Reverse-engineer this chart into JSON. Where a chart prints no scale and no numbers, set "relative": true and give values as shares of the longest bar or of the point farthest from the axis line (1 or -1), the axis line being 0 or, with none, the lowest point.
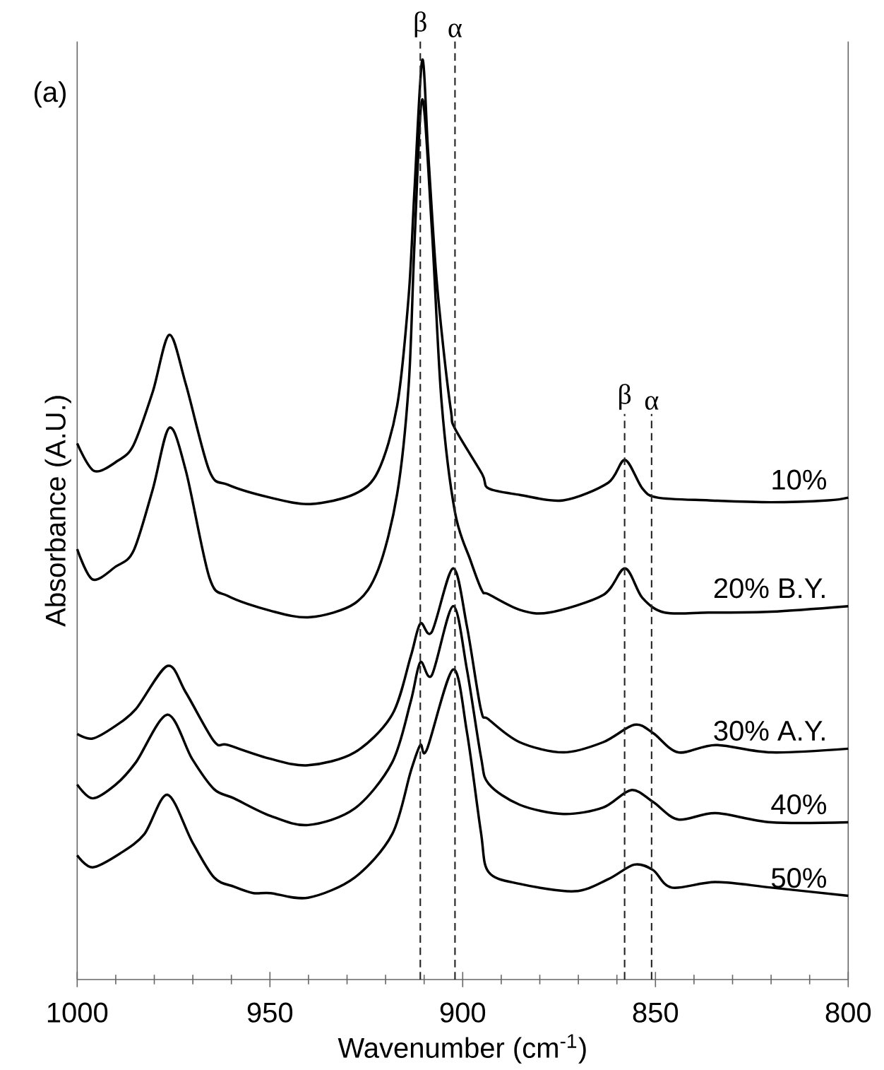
{
  "chart_data": {
    "type": "line",
    "relative": true,
    "xlabel": "Wavenumber (cm$^{-1}$)",
    "ylabel": "Absorbance (A.U.)",
    "xlim": [
      1000,
      800
    ],
    "xticks": [
      1000,
      950,
      900,
      850,
      800
    ],
    "annotations": [
      "(a)"
    ],
    "ref_lines": [
      {
        "axis": "x",
        "value": 911,
        "label": "β",
        "line_style": "dashed"
      },
      {
        "axis": "x",
        "value": 902,
        "label": "α",
        "line_style": "dashed"
      },
      {
        "axis": "x",
        "value": 858,
        "label": "β",
        "line_style": "dashed"
      },
      {
        "axis": "x",
        "value": 851,
        "label": "α",
        "line_style": "dashed"
      }
    ],
    "series": [
      {
        "name": "10%",
        "color": "#000000",
        "x": [
          1000,
          995.6,
          989.5,
          985.4,
          980.4,
          976.1,
          971.8,
          965.7,
          960.9,
          949.9,
          939.6,
          928,
          921.9,
          917,
          914,
          912.5,
          910.5,
          909,
          907,
          905,
          903,
          902,
          895,
          893.3,
          885.2,
          873.9,
          862.3,
          857.9,
          853.4,
          849.4,
          836.2,
          820,
          805.2,
          800
        ],
        "values": [
          0.583,
          0.553,
          0.564,
          0.581,
          0.639,
          0.701,
          0.647,
          0.553,
          0.538,
          0.524,
          0.517,
          0.528,
          0.553,
          0.624,
          0.744,
          0.859,
          1,
          0.902,
          0.773,
          0.686,
          0.617,
          0.599,
          0.55,
          0.534,
          0.527,
          0.521,
          0.54,
          0.565,
          0.534,
          0.524,
          0.521,
          0.519,
          0.521,
          0.524
        ]
      },
      {
        "name": "20% B.Y.",
        "color": "#000000",
        "x": [
          1000,
          996,
          990,
          985.4,
          980.4,
          976.1,
          971.8,
          965.7,
          960.9,
          949.9,
          939.6,
          928,
          921.9,
          917,
          914,
          912.5,
          910.5,
          908,
          905.5,
          902,
          898,
          895,
          893.3,
          885.2,
          877.6,
          863.6,
          857.9,
          853.4,
          847.6,
          836.2,
          820,
          800
        ],
        "values": [
          0.468,
          0.435,
          0.449,
          0.466,
          0.533,
          0.6,
          0.553,
          0.437,
          0.417,
          0.401,
          0.394,
          0.409,
          0.446,
          0.528,
          0.647,
          0.801,
          0.957,
          0.816,
          0.629,
          0.508,
          0.456,
          0.423,
          0.419,
          0.402,
          0.399,
          0.418,
          0.447,
          0.415,
          0.399,
          0.399,
          0.4,
          0.406
        ]
      },
      {
        "name": "30% A.Y.",
        "color": "#000000",
        "x": [
          1000,
          996,
          990,
          984.8,
          976.6,
          971.8,
          964.5,
          960.9,
          949.9,
          940.1,
          928,
          918.3,
          913.5,
          911,
          908,
          902.5,
          898.9,
          895.3,
          893.3,
          885.2,
          873.9,
          863.6,
          855.5,
          850.6,
          844.1,
          834.4,
          820,
          800
        ],
        "values": [
          0.267,
          0.262,
          0.276,
          0.294,
          0.341,
          0.312,
          0.259,
          0.255,
          0.24,
          0.233,
          0.247,
          0.288,
          0.351,
          0.387,
          0.378,
          0.447,
          0.384,
          0.294,
          0.283,
          0.258,
          0.247,
          0.258,
          0.277,
          0.268,
          0.247,
          0.255,
          0.247,
          0.251
        ]
      },
      {
        "name": "40%",
        "color": "#000000",
        "x": [
          1000,
          996,
          990,
          984.8,
          976.6,
          970.2,
          964.5,
          959.3,
          949.9,
          940.1,
          928,
          918.3,
          913.5,
          911,
          908,
          902.5,
          898.9,
          895.3,
          893.3,
          885.2,
          873.9,
          863.6,
          856.3,
          850.6,
          844.1,
          834.4,
          820,
          800
        ],
        "values": [
          0.212,
          0.197,
          0.212,
          0.236,
          0.288,
          0.24,
          0.207,
          0.197,
          0.178,
          0.168,
          0.186,
          0.236,
          0.302,
          0.345,
          0.331,
          0.406,
          0.337,
          0.243,
          0.213,
          0.19,
          0.18,
          0.187,
          0.206,
          0.193,
          0.174,
          0.181,
          0.171,
          0.171
        ]
      },
      {
        "name": "50%",
        "color": "#000000",
        "x": [
          1000,
          996,
          988.9,
          982.6,
          976.6,
          970.2,
          964.5,
          959.3,
          954.3,
          949.9,
          940.1,
          928,
          918.3,
          913.5,
          911,
          909.3,
          902.5,
          898.9,
          895.3,
          893.3,
          885.2,
          871,
          862.3,
          855.5,
          850.6,
          845.8,
          834.4,
          820,
          800
        ],
        "values": [
          0.135,
          0.122,
          0.137,
          0.158,
          0.201,
          0.15,
          0.111,
          0.101,
          0.094,
          0.094,
          0.089,
          0.111,
          0.158,
          0.226,
          0.255,
          0.25,
          0.337,
          0.269,
          0.161,
          0.117,
          0.104,
          0.096,
          0.109,
          0.125,
          0.119,
          0.1,
          0.106,
          0.1,
          0.091
        ]
      }
    ]
  }
}
